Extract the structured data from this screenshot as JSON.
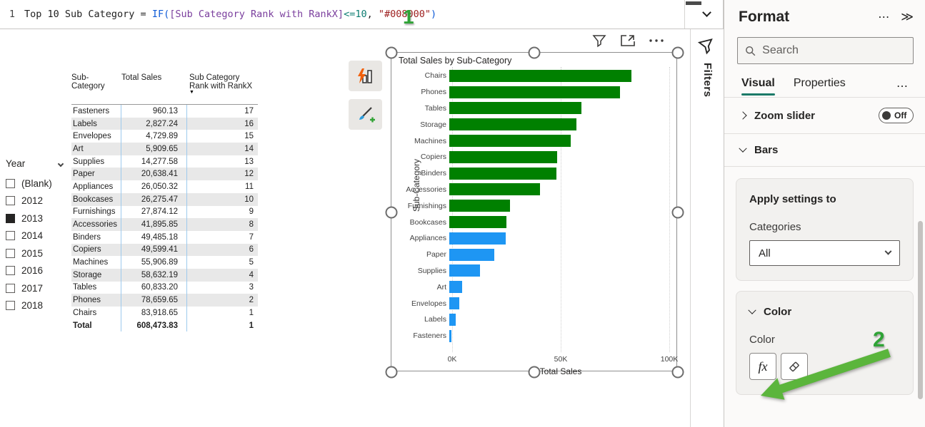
{
  "formula": {
    "line_number": "1",
    "segments": [
      {
        "text": "Top 10 Sub Category = ",
        "color": "#1f1f1f"
      },
      {
        "text": "IF",
        "color": "#0f5bd7"
      },
      {
        "text": "(",
        "color": "#0f5bd7"
      },
      {
        "text": "[Sub Category Rank with RankX]",
        "color": "#7a3e9d"
      },
      {
        "text": "<=",
        "color": "#0e7d72"
      },
      {
        "text": "10",
        "color": "#0e7d72"
      },
      {
        "text": ",",
        "color": "#1f1f1f"
      },
      {
        "text": " \"#008000\"",
        "color": "#9e2121"
      },
      {
        "text": ")",
        "color": "#0f5bd7"
      }
    ]
  },
  "annotations": {
    "step1": "1",
    "step2": "2",
    "color": "#2fa336"
  },
  "slicer": {
    "title": "Year",
    "items": [
      {
        "label": "(Blank)",
        "checked": false
      },
      {
        "label": "2012",
        "checked": false
      },
      {
        "label": "2013",
        "checked": true
      },
      {
        "label": "2014",
        "checked": false
      },
      {
        "label": "2015",
        "checked": false
      },
      {
        "label": "2016",
        "checked": false
      },
      {
        "label": "2017",
        "checked": false
      },
      {
        "label": "2018",
        "checked": false
      }
    ]
  },
  "table": {
    "columns": [
      "Sub-Category",
      "Total Sales",
      "Sub Category Rank with RankX"
    ],
    "rows": [
      [
        "Fasteners",
        "960.13",
        "17"
      ],
      [
        "Labels",
        "2,827.24",
        "16"
      ],
      [
        "Envelopes",
        "4,729.89",
        "15"
      ],
      [
        "Art",
        "5,909.65",
        "14"
      ],
      [
        "Supplies",
        "14,277.58",
        "13"
      ],
      [
        "Paper",
        "20,638.41",
        "12"
      ],
      [
        "Appliances",
        "26,050.32",
        "11"
      ],
      [
        "Bookcases",
        "26,275.47",
        "10"
      ],
      [
        "Furnishings",
        "27,874.12",
        "9"
      ],
      [
        "Accessories",
        "41,895.85",
        "8"
      ],
      [
        "Binders",
        "49,485.18",
        "7"
      ],
      [
        "Copiers",
        "49,599.41",
        "6"
      ],
      [
        "Machines",
        "55,906.89",
        "5"
      ],
      [
        "Storage",
        "58,632.19",
        "4"
      ],
      [
        "Tables",
        "60,833.20",
        "3"
      ],
      [
        "Phones",
        "78,659.65",
        "2"
      ],
      [
        "Chairs",
        "83,918.65",
        "1"
      ]
    ],
    "total_row": [
      "Total",
      "608,473.83",
      "1"
    ]
  },
  "chart_data": {
    "type": "bar",
    "orientation": "horizontal",
    "title": "Total Sales by Sub-Category",
    "xlabel": "Total Sales",
    "ylabel": "Sub-Category",
    "xlim": [
      0,
      100000
    ],
    "xticks": [
      "0K",
      "50K",
      "100K"
    ],
    "grid": "dotted-vertical",
    "categories": [
      "Chairs",
      "Phones",
      "Tables",
      "Storage",
      "Machines",
      "Copiers",
      "Binders",
      "Accessories",
      "Furnishings",
      "Bookcases",
      "Appliances",
      "Paper",
      "Supplies",
      "Art",
      "Envelopes",
      "Labels",
      "Fasteners"
    ],
    "values": [
      83918.65,
      78659.65,
      60833.2,
      58632.19,
      55906.89,
      49599.41,
      49485.18,
      41895.85,
      27874.12,
      26275.47,
      26050.32,
      20638.41,
      14277.58,
      5909.65,
      4729.89,
      2827.24,
      960.13
    ],
    "colors": [
      "#008000",
      "#008000",
      "#008000",
      "#008000",
      "#008000",
      "#008000",
      "#008000",
      "#008000",
      "#008000",
      "#008000",
      "#1e96f3",
      "#1e96f3",
      "#1e96f3",
      "#1e96f3",
      "#1e96f3",
      "#1e96f3",
      "#1e96f3"
    ],
    "color_legend": {
      "top10": "#008000",
      "others": "#1e96f3"
    }
  },
  "filters_pane": {
    "label": "Filters"
  },
  "format_pane": {
    "title": "Format",
    "more_icon": "⋯",
    "collapse_icon": "≫",
    "search_placeholder": "Search",
    "tabs": {
      "visual": "Visual",
      "properties": "Properties",
      "more": "⋯"
    },
    "zoom_slider": {
      "label": "Zoom slider",
      "toggle_state": "Off"
    },
    "bars_section": {
      "label": "Bars"
    },
    "apply_card": {
      "heading": "Apply settings to",
      "field_label": "Categories",
      "dropdown_value": "All"
    },
    "color_card": {
      "heading": "Color",
      "field_label": "Color",
      "fx_label": "fx"
    }
  }
}
